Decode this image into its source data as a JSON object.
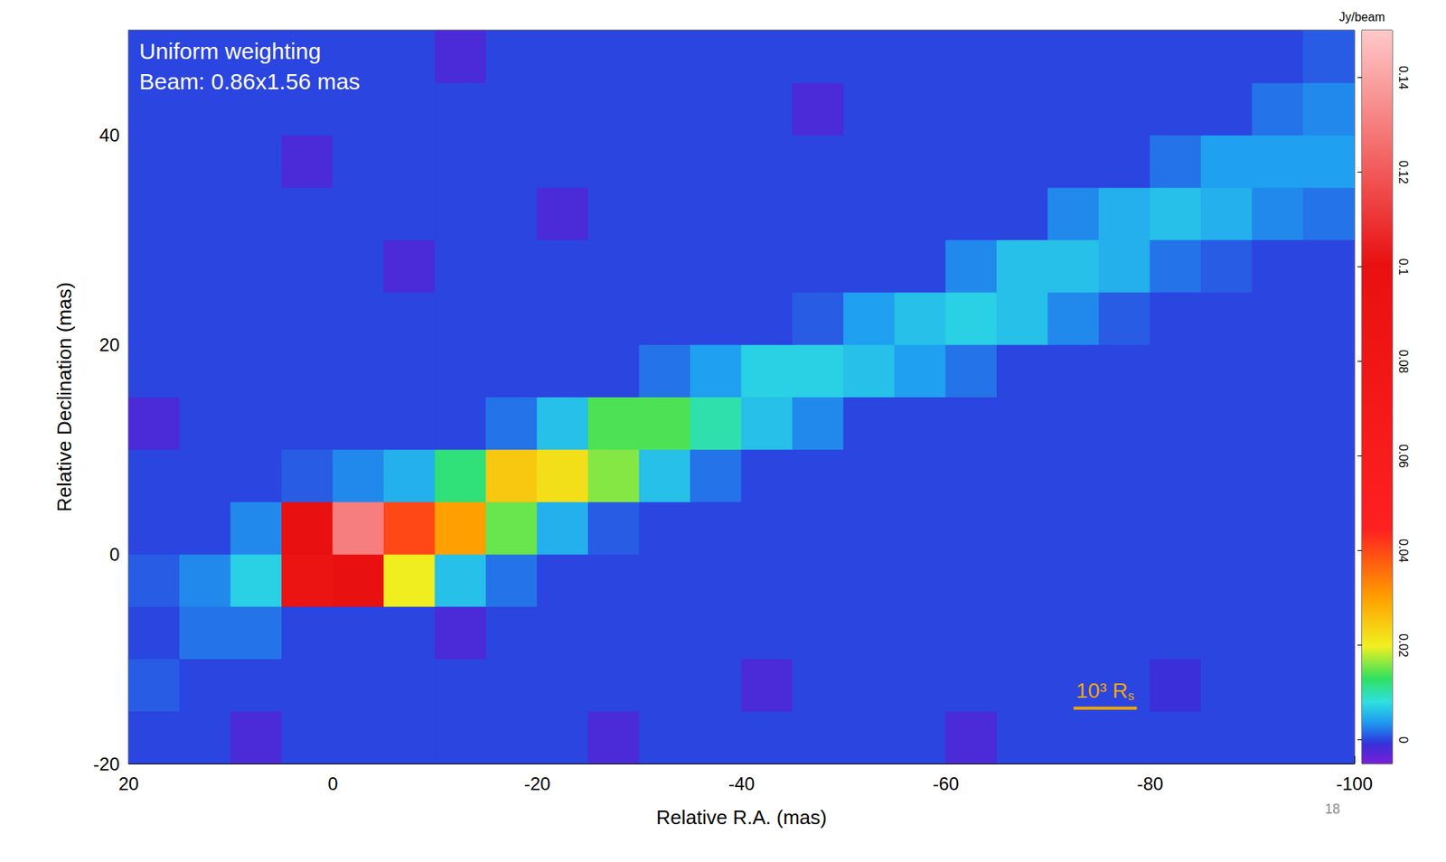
{
  "chart_data": {
    "type": "heatmap",
    "x_label": "Relative R.A. (mas)",
    "y_label": "Relative Declination (mas)",
    "annotations": [
      "Uniform weighting",
      "Beam: 0.86x1.56 mas"
    ],
    "scale_bar": {
      "label": "10³ R",
      "label_subscript": "s",
      "x": [
        -72.5,
        -78.7
      ],
      "y": -14.7
    },
    "page_number": "18",
    "xlim": [
      20,
      -100
    ],
    "xticks": [
      20,
      0,
      -20,
      -40,
      -60,
      -80,
      -100
    ],
    "ylim": [
      -20,
      50
    ],
    "yticks": [
      -20,
      0,
      20,
      40
    ],
    "x": [
      17.5,
      12.5,
      7.5,
      2.5,
      -2.5,
      -7.5,
      -12.5,
      -17.5,
      -22.5,
      -27.5,
      -32.5,
      -37.5,
      -42.5,
      -47.5,
      -52.5,
      -57.5,
      -62.5,
      -67.5,
      -72.5,
      -77.5,
      -82.5,
      -87.5,
      -92.5,
      -97.5
    ],
    "y": [
      -17.5,
      -12.5,
      -7.5,
      -2.5,
      2.5,
      7.5,
      12.5,
      17.5,
      22.5,
      27.5,
      32.5,
      37.5,
      42.5,
      47.5
    ],
    "cells": [
      [
        0,
        0,
        -0.002,
        0,
        0,
        0,
        0,
        0,
        0,
        -0.002,
        0,
        0,
        0,
        0,
        0,
        0,
        -0.002,
        0,
        0,
        0,
        0,
        0,
        0,
        0
      ],
      [
        0.001,
        0,
        0,
        0,
        0,
        0,
        0,
        0,
        0,
        0,
        0,
        0,
        -0.002,
        0,
        0,
        0,
        0,
        0,
        0,
        0,
        -0.001,
        0,
        0,
        0
      ],
      [
        0,
        0.002,
        0.002,
        0,
        0,
        0,
        -0.002,
        0,
        0,
        0,
        0,
        0,
        0,
        0,
        0,
        0,
        0,
        0,
        0,
        0,
        0,
        0,
        0,
        0
      ],
      [
        0.001,
        0.003,
        0.007,
        0.09,
        0.1,
        0.02,
        0.006,
        0.002,
        0,
        0,
        0,
        0,
        0,
        0,
        0,
        0,
        0,
        0,
        0,
        0,
        0,
        0,
        0,
        0
      ],
      [
        0,
        0,
        0.003,
        0.1,
        0.13,
        0.04,
        0.03,
        0.015,
        0.005,
        0.001,
        0,
        0,
        0,
        0,
        0,
        0,
        0,
        0,
        0,
        0,
        0,
        0,
        0,
        0
      ],
      [
        0,
        0,
        0,
        0.001,
        0.003,
        0.005,
        0.012,
        0.025,
        0.022,
        0.016,
        0.006,
        0.002,
        0,
        0,
        0,
        0,
        0,
        0,
        0,
        0,
        0,
        0,
        0,
        0
      ],
      [
        -0.002,
        0,
        0,
        0,
        0,
        0,
        0,
        0.002,
        0.006,
        0.014,
        0.014,
        0.01,
        0.006,
        0.003,
        0,
        0,
        0,
        0,
        0,
        0,
        0,
        0,
        0,
        0
      ],
      [
        0,
        0,
        0,
        0,
        0,
        0,
        0,
        0,
        0,
        0,
        0.002,
        0.004,
        0.007,
        0.007,
        0.006,
        0.004,
        0.002,
        0,
        0,
        0,
        0,
        0,
        0,
        0
      ],
      [
        0,
        0,
        0,
        0,
        0,
        0,
        0,
        0,
        0,
        0,
        0,
        0,
        0,
        0.001,
        0.004,
        0.006,
        0.007,
        0.006,
        0.003,
        0.001,
        0,
        0,
        0,
        0
      ],
      [
        0,
        0,
        0,
        0,
        0,
        -0.002,
        0,
        0,
        0,
        0,
        0,
        0,
        0,
        0,
        0,
        0,
        0.003,
        0.006,
        0.006,
        0.005,
        0.002,
        0.001,
        0,
        0
      ],
      [
        0,
        0,
        0,
        0,
        0,
        0,
        0,
        0,
        -0.002,
        0,
        0,
        0,
        0,
        0,
        0,
        0,
        0,
        0,
        0.003,
        0.005,
        0.006,
        0.005,
        0.003,
        0.002
      ],
      [
        0,
        0,
        0,
        -0.002,
        0,
        0,
        0,
        0,
        0,
        0,
        0,
        0,
        0,
        0,
        0,
        0,
        0,
        0,
        0,
        0,
        0.002,
        0.004,
        0.004,
        0.004
      ],
      [
        0,
        0,
        0,
        0,
        0,
        0,
        0,
        0,
        0,
        0,
        0,
        0,
        0,
        -0.002,
        0,
        0,
        0,
        0,
        0,
        0,
        0,
        0,
        0.002,
        0.003
      ],
      [
        0,
        0,
        0,
        0,
        0,
        0,
        -0.002,
        0,
        0,
        0,
        0,
        0,
        0,
        0,
        0,
        0,
        0,
        0,
        0,
        0,
        0,
        0,
        0,
        0.001
      ]
    ],
    "colorbar": {
      "label": "Jy/beam",
      "range": [
        -0.005,
        0.15
      ],
      "ticks": [
        0,
        0.02,
        0.04,
        0.06,
        0.08,
        0.1,
        0.12,
        0.14
      ]
    }
  }
}
